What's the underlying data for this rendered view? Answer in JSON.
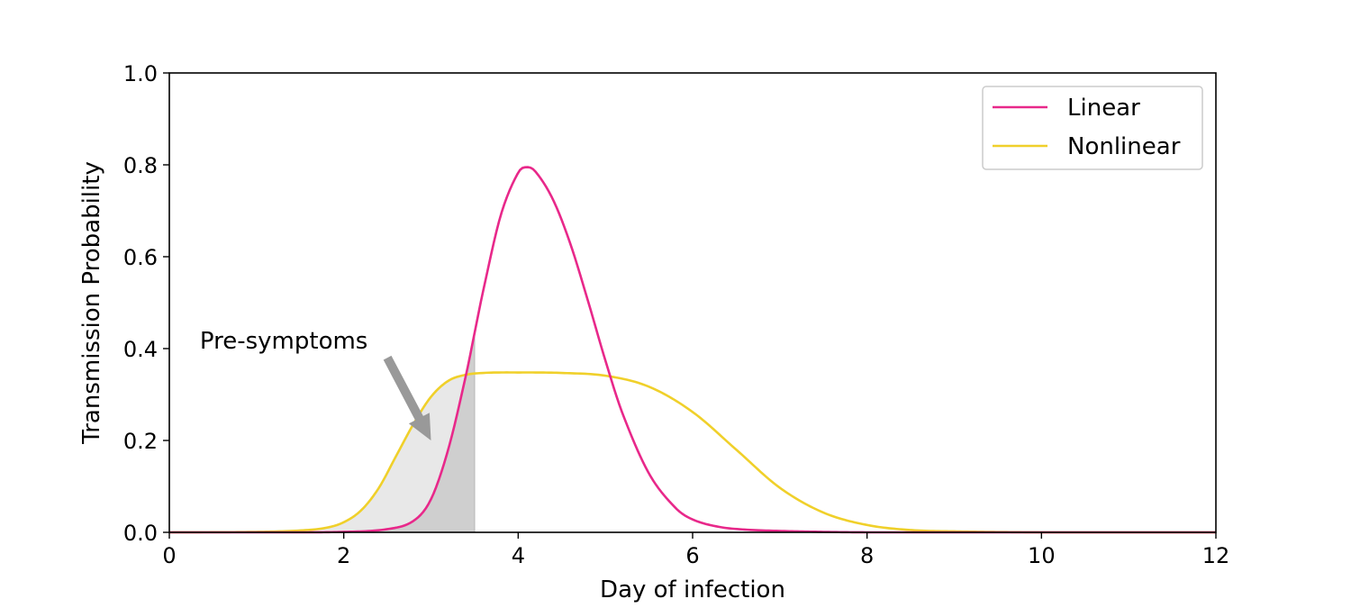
{
  "chart_data": {
    "type": "line",
    "xlabel": "Day of infection",
    "ylabel": "Transmission Probability",
    "xlim": [
      0,
      12
    ],
    "ylim": [
      0,
      1
    ],
    "xticks": [
      0,
      2,
      4,
      6,
      8,
      10,
      12
    ],
    "yticks": [
      0.0,
      0.2,
      0.4,
      0.6,
      0.8,
      1.0
    ],
    "xtick_labels": [
      "0",
      "2",
      "4",
      "6",
      "8",
      "10",
      "12"
    ],
    "ytick_labels": [
      "0.0",
      "0.2",
      "0.4",
      "0.6",
      "0.8",
      "1.0"
    ],
    "grid": false,
    "legend_position": "top-right",
    "series": [
      {
        "name": "Linear",
        "color": "#e8288a",
        "x": [
          0,
          1,
          2,
          2.5,
          2.8,
          3.0,
          3.2,
          3.4,
          3.5,
          3.6,
          3.8,
          4.0,
          4.1,
          4.2,
          4.4,
          4.6,
          4.8,
          5.0,
          5.2,
          5.5,
          5.8,
          6.0,
          6.3,
          6.6,
          7.0,
          7.5,
          8,
          9,
          10,
          11,
          12
        ],
        "y": [
          0,
          0,
          0.001,
          0.007,
          0.025,
          0.072,
          0.182,
          0.341,
          0.434,
          0.527,
          0.69,
          0.783,
          0.795,
          0.785,
          0.724,
          0.627,
          0.504,
          0.374,
          0.257,
          0.128,
          0.054,
          0.028,
          0.012,
          0.006,
          0.003,
          0.001,
          0,
          0,
          0,
          0,
          0
        ]
      },
      {
        "name": "Nonlinear",
        "color": "#f0d02a",
        "x": [
          0,
          1,
          1.5,
          1.8,
          2.0,
          2.2,
          2.4,
          2.6,
          2.8,
          3.0,
          3.2,
          3.4,
          3.6,
          3.8,
          4.0,
          4.2,
          4.5,
          5.0,
          5.5,
          6.0,
          6.5,
          7.0,
          7.5,
          8.0,
          8.5,
          9.0,
          10,
          11,
          12
        ],
        "y": [
          0,
          0.001,
          0.004,
          0.01,
          0.022,
          0.048,
          0.096,
          0.166,
          0.236,
          0.295,
          0.33,
          0.343,
          0.347,
          0.348,
          0.348,
          0.348,
          0.347,
          0.341,
          0.317,
          0.262,
          0.18,
          0.097,
          0.043,
          0.016,
          0.005,
          0.002,
          0,
          0,
          0
        ]
      }
    ],
    "shaded_region": {
      "label": "Pre-symptoms",
      "x_end": 3.5,
      "outer_color": "#e8e8e8",
      "inner_color": "#cfcfcf"
    },
    "annotation": {
      "text": "Pre-symptoms",
      "text_at": [
        0.35,
        0.4
      ],
      "arrow_from": [
        2.5,
        0.38
      ],
      "arrow_to": [
        3.0,
        0.2
      ]
    }
  }
}
